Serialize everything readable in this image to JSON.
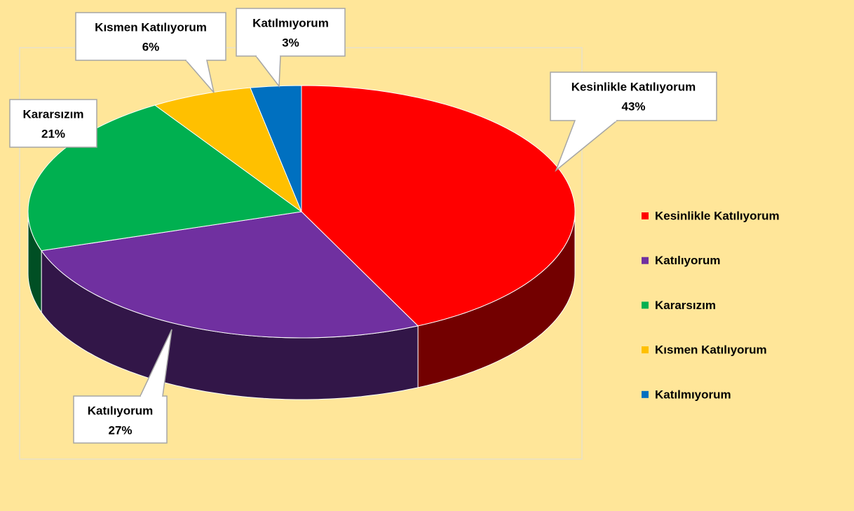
{
  "chart_data": {
    "type": "pie3d",
    "categories": [
      "Kesinlikle Katılıyorum",
      "Katılıyorum",
      "Kararsızım",
      "Kısmen Katılıyorum",
      "Katılmıyorum"
    ],
    "values": [
      43,
      27,
      21,
      6,
      3
    ],
    "value_labels": [
      "43%",
      "27%",
      "21%",
      "6%",
      "3%"
    ],
    "colors": [
      "#ff0000",
      "#7030a0",
      "#00b050",
      "#ffc000",
      "#0070c0"
    ],
    "legend": "right"
  }
}
